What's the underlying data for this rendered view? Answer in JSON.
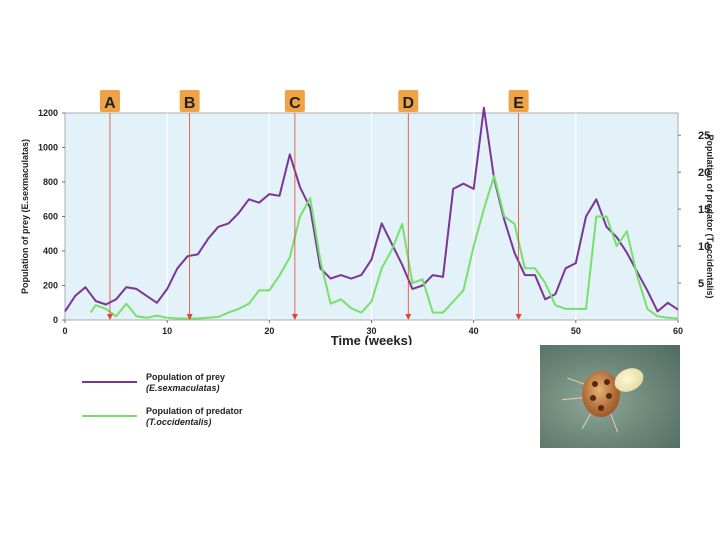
{
  "chart_data": {
    "type": "line",
    "xlabel": "Time (weeks)",
    "ylabel_left": "Population of prey (E.sexmaculatas)",
    "ylabel_right": "Population of predator (T.occidentalis)",
    "x_ticks": [
      "0",
      "10",
      "20",
      "30",
      "40",
      "50",
      "60"
    ],
    "y_left_ticks": [
      "0",
      "200",
      "400",
      "600",
      "800",
      "1000",
      "1200"
    ],
    "y_right_ticks": [
      "5",
      "10",
      "15",
      "20",
      "25"
    ],
    "xlim": [
      0,
      60
    ],
    "ylim_left": [
      0,
      1200
    ],
    "ylim_right": [
      0,
      28
    ],
    "grid": "vertical",
    "series": [
      {
        "name": "Population of prey (E.sexmaculatas)",
        "legend_line1": "Population of prey",
        "legend_line2": "(E.sexmaculatas)",
        "axis": "left",
        "color": "#7b3596",
        "x": [
          0,
          1,
          2,
          3,
          4,
          5,
          6,
          7,
          8,
          9,
          10,
          11,
          12,
          13,
          14,
          15,
          16,
          17,
          18,
          19,
          20,
          21,
          22,
          23,
          24,
          25,
          26,
          27,
          28,
          29,
          30,
          31,
          32,
          33,
          34,
          35,
          36,
          37,
          38,
          39,
          40,
          41,
          42,
          43,
          44,
          45,
          46,
          47,
          48,
          49,
          50,
          51,
          52,
          53,
          54,
          55,
          56,
          57,
          58,
          59,
          60
        ],
        "y": [
          50,
          140,
          190,
          110,
          90,
          120,
          190,
          180,
          140,
          100,
          180,
          300,
          370,
          380,
          470,
          540,
          560,
          620,
          700,
          680,
          730,
          720,
          960,
          770,
          650,
          300,
          240,
          260,
          240,
          260,
          350,
          560,
          440,
          320,
          180,
          200,
          260,
          250,
          760,
          790,
          760,
          1230,
          820,
          580,
          390,
          260,
          260,
          120,
          150,
          300,
          330,
          600,
          700,
          540,
          480,
          390,
          280,
          170,
          50,
          100,
          60
        ]
      },
      {
        "name": "Population of predator (T.occidentalis)",
        "legend_line1": "Population of predator",
        "legend_line2": "(T.occidentalis)",
        "axis": "right",
        "color": "#77e06b",
        "x": [
          2.5,
          3,
          4,
          5,
          6,
          7,
          8,
          9,
          10,
          11,
          12,
          13,
          14,
          15,
          16,
          17,
          18,
          19,
          20,
          21,
          22,
          23,
          24,
          25,
          26,
          27,
          28,
          29,
          30,
          31,
          32,
          33,
          34,
          35,
          36,
          37,
          38,
          39,
          40,
          41,
          42,
          43,
          44,
          45,
          46,
          47,
          48,
          49,
          50,
          51,
          52,
          53,
          54,
          55,
          56,
          57,
          58,
          59,
          60
        ],
        "y": [
          1,
          2,
          1.5,
          0.5,
          2.2,
          0.5,
          0.3,
          0.6,
          0.3,
          0.2,
          0.2,
          0.2,
          0.3,
          0.4,
          1,
          1.5,
          2.2,
          4,
          4,
          6,
          8.5,
          14,
          16.5,
          8,
          2.2,
          2.8,
          1.6,
          1,
          2.5,
          7,
          9.5,
          13,
          5,
          5.5,
          1,
          1,
          2.5,
          4,
          10,
          15,
          19.5,
          14,
          13,
          7,
          7,
          5,
          2,
          1.5,
          1.5,
          1.5,
          14,
          14,
          10,
          12,
          6,
          1.5,
          0.5,
          0.3,
          0.2
        ]
      }
    ],
    "markers": [
      {
        "label": "A",
        "x": 4.4
      },
      {
        "label": "B",
        "x": 12.2
      },
      {
        "label": "C",
        "x": 22.5
      },
      {
        "label": "D",
        "x": 33.6
      },
      {
        "label": "E",
        "x": 44.4
      }
    ],
    "colors": {
      "plot_background": "#e3f1f8",
      "marker_box": "#eea347",
      "marker_line": "#e2442f"
    }
  }
}
